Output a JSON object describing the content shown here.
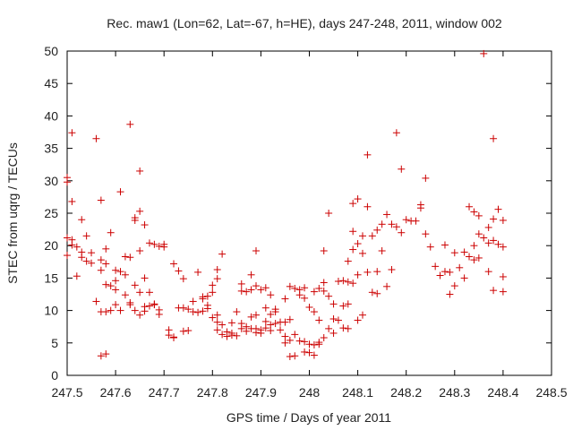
{
  "chart_data": {
    "type": "scatter",
    "title": "Rec. maw1 (Lon=62, Lat=-67, h=HE), days 247-248, 2011, window 002",
    "xlabel": "GPS time / Days of year 2011",
    "ylabel": "STEC from uqrg / TECUs",
    "xlim": [
      247.5,
      248.5
    ],
    "ylim": [
      0,
      50
    ],
    "xticks": [
      "247.5",
      "247.6",
      "247.7",
      "247.8",
      "247.9",
      "248",
      "248.1",
      "248.2",
      "248.3",
      "248.4",
      "248.5"
    ],
    "yticks": [
      "0",
      "5",
      "10",
      "15",
      "20",
      "25",
      "30",
      "35",
      "40",
      "45",
      "50"
    ],
    "grid": false,
    "marker_color": "#cc0000",
    "marker": "plus",
    "points": [
      [
        247.5,
        30.5
      ],
      [
        247.5,
        29.8
      ],
      [
        247.5,
        21.2
      ],
      [
        247.5,
        18.5
      ],
      [
        247.51,
        37.4
      ],
      [
        247.51,
        26.8
      ],
      [
        247.51,
        20.9
      ],
      [
        247.51,
        20.1
      ],
      [
        247.52,
        19.8
      ],
      [
        247.52,
        15.3
      ],
      [
        247.53,
        24.0
      ],
      [
        247.53,
        19.0
      ],
      [
        247.53,
        18.2
      ],
      [
        247.54,
        21.5
      ],
      [
        247.54,
        17.6
      ],
      [
        247.55,
        17.3
      ],
      [
        247.55,
        18.9
      ],
      [
        247.56,
        36.5
      ],
      [
        247.56,
        11.4
      ],
      [
        247.57,
        17.8
      ],
      [
        247.57,
        16.2
      ],
      [
        247.57,
        9.8
      ],
      [
        247.57,
        3.0
      ],
      [
        247.57,
        27.0
      ],
      [
        247.58,
        19.5
      ],
      [
        247.58,
        17.2
      ],
      [
        247.58,
        14.0
      ],
      [
        247.58,
        9.8
      ],
      [
        247.58,
        3.3
      ],
      [
        247.59,
        13.8
      ],
      [
        247.59,
        10.0
      ],
      [
        247.59,
        22.0
      ],
      [
        247.6,
        16.2
      ],
      [
        247.6,
        14.6
      ],
      [
        247.6,
        13.2
      ],
      [
        247.6,
        10.9
      ],
      [
        247.61,
        28.3
      ],
      [
        247.61,
        16.0
      ],
      [
        247.61,
        10.0
      ],
      [
        247.62,
        18.3
      ],
      [
        247.62,
        15.5
      ],
      [
        247.62,
        12.4
      ],
      [
        247.63,
        38.7
      ],
      [
        247.63,
        11.2
      ],
      [
        247.63,
        10.9
      ],
      [
        247.63,
        18.2
      ],
      [
        247.64,
        24.3
      ],
      [
        247.64,
        23.9
      ],
      [
        247.64,
        13.9
      ],
      [
        247.64,
        10.0
      ],
      [
        247.65,
        31.5
      ],
      [
        247.65,
        25.3
      ],
      [
        247.65,
        19.2
      ],
      [
        247.65,
        12.8
      ],
      [
        247.65,
        9.3
      ],
      [
        247.66,
        23.2
      ],
      [
        247.66,
        15.0
      ],
      [
        247.66,
        10.6
      ],
      [
        247.66,
        9.9
      ],
      [
        247.67,
        20.4
      ],
      [
        247.67,
        12.8
      ],
      [
        247.67,
        10.7
      ],
      [
        247.68,
        20.2
      ],
      [
        247.68,
        11.0
      ],
      [
        247.68,
        10.9
      ],
      [
        247.69,
        19.9
      ],
      [
        247.69,
        10.1
      ],
      [
        247.69,
        9.4
      ],
      [
        247.7,
        20.2
      ],
      [
        247.7,
        19.8
      ],
      [
        247.71,
        7.0
      ],
      [
        247.71,
        6.2
      ],
      [
        247.72,
        17.2
      ],
      [
        247.72,
        5.8
      ],
      [
        247.72,
        5.9
      ],
      [
        247.73,
        16.1
      ],
      [
        247.73,
        10.4
      ],
      [
        247.74,
        10.4
      ],
      [
        247.74,
        14.9
      ],
      [
        247.74,
        6.8
      ],
      [
        247.75,
        10.2
      ],
      [
        247.75,
        6.9
      ],
      [
        247.76,
        9.8
      ],
      [
        247.76,
        11.4
      ],
      [
        247.77,
        9.7
      ],
      [
        247.77,
        15.9
      ],
      [
        247.78,
        11.8
      ],
      [
        247.78,
        12.1
      ],
      [
        247.78,
        9.9
      ],
      [
        247.79,
        10.3
      ],
      [
        247.79,
        12.2
      ],
      [
        247.79,
        10.8
      ],
      [
        247.8,
        12.8
      ],
      [
        247.8,
        13.9
      ],
      [
        247.8,
        8.9
      ],
      [
        247.81,
        9.3
      ],
      [
        247.81,
        16.3
      ],
      [
        247.81,
        14.9
      ],
      [
        247.81,
        8.2
      ],
      [
        247.81,
        7.0
      ],
      [
        247.82,
        6.3
      ],
      [
        247.82,
        7.8
      ],
      [
        247.82,
        18.7
      ],
      [
        247.83,
        6.7
      ],
      [
        247.83,
        6.0
      ],
      [
        247.84,
        6.5
      ],
      [
        247.84,
        6.2
      ],
      [
        247.84,
        8.1
      ],
      [
        247.85,
        6.1
      ],
      [
        247.85,
        9.8
      ],
      [
        247.86,
        14.1
      ],
      [
        247.86,
        13.0
      ],
      [
        247.86,
        8.0
      ],
      [
        247.86,
        7.2
      ],
      [
        247.87,
        12.9
      ],
      [
        247.87,
        7.5
      ],
      [
        247.87,
        6.8
      ],
      [
        247.88,
        15.5
      ],
      [
        247.88,
        13.2
      ],
      [
        247.88,
        9.0
      ],
      [
        247.88,
        7.2
      ],
      [
        247.89,
        19.2
      ],
      [
        247.89,
        13.8
      ],
      [
        247.89,
        9.3
      ],
      [
        247.89,
        7.2
      ],
      [
        247.89,
        6.6
      ],
      [
        247.9,
        13.2
      ],
      [
        247.9,
        7.0
      ],
      [
        247.9,
        6.5
      ],
      [
        247.91,
        13.5
      ],
      [
        247.91,
        10.4
      ],
      [
        247.91,
        8.3
      ],
      [
        247.91,
        7.3
      ],
      [
        247.92,
        12.4
      ],
      [
        247.92,
        9.4
      ],
      [
        247.92,
        7.8
      ],
      [
        247.92,
        6.9
      ],
      [
        247.93,
        10.2
      ],
      [
        247.93,
        9.8
      ],
      [
        247.93,
        8.0
      ],
      [
        247.94,
        8.2
      ],
      [
        247.94,
        7.0
      ],
      [
        247.95,
        11.8
      ],
      [
        247.95,
        8.2
      ],
      [
        247.95,
        6.0
      ],
      [
        247.95,
        5.0
      ],
      [
        247.96,
        13.7
      ],
      [
        247.96,
        8.6
      ],
      [
        247.96,
        5.4
      ],
      [
        247.96,
        2.9
      ],
      [
        247.97,
        13.4
      ],
      [
        247.97,
        6.3
      ],
      [
        247.97,
        3.0
      ],
      [
        247.98,
        13.2
      ],
      [
        247.98,
        12.4
      ],
      [
        247.98,
        5.3
      ],
      [
        247.99,
        13.5
      ],
      [
        247.99,
        11.9
      ],
      [
        247.99,
        5.2
      ],
      [
        247.99,
        3.6
      ],
      [
        248.0,
        10.5
      ],
      [
        248.0,
        4.8
      ],
      [
        248.0,
        3.5
      ],
      [
        248.01,
        12.9
      ],
      [
        248.01,
        9.8
      ],
      [
        248.01,
        4.7
      ],
      [
        248.01,
        3.1
      ],
      [
        248.02,
        13.4
      ],
      [
        248.02,
        8.5
      ],
      [
        248.02,
        5.1
      ],
      [
        248.02,
        4.8
      ],
      [
        248.03,
        19.2
      ],
      [
        248.03,
        14.3
      ],
      [
        248.03,
        13.0
      ],
      [
        248.03,
        5.8
      ],
      [
        248.04,
        25.0
      ],
      [
        248.04,
        12.2
      ],
      [
        248.04,
        7.2
      ],
      [
        248.05,
        11.0
      ],
      [
        248.05,
        8.7
      ],
      [
        248.05,
        6.5
      ],
      [
        248.06,
        14.5
      ],
      [
        248.06,
        8.5
      ],
      [
        248.07,
        14.6
      ],
      [
        248.07,
        10.7
      ],
      [
        248.07,
        7.3
      ],
      [
        248.08,
        17.6
      ],
      [
        248.08,
        14.4
      ],
      [
        248.08,
        11.0
      ],
      [
        248.08,
        7.2
      ],
      [
        248.09,
        26.5
      ],
      [
        248.09,
        22.2
      ],
      [
        248.09,
        19.4
      ],
      [
        248.09,
        14.2
      ],
      [
        248.1,
        27.2
      ],
      [
        248.1,
        20.3
      ],
      [
        248.1,
        15.5
      ],
      [
        248.1,
        8.5
      ],
      [
        248.11,
        21.5
      ],
      [
        248.11,
        18.8
      ],
      [
        248.11,
        9.3
      ],
      [
        248.12,
        26.0
      ],
      [
        248.12,
        34.0
      ],
      [
        248.12,
        15.9
      ],
      [
        248.13,
        21.5
      ],
      [
        248.13,
        12.8
      ],
      [
        248.14,
        22.4
      ],
      [
        248.14,
        16.0
      ],
      [
        248.14,
        12.6
      ],
      [
        248.15,
        23.3
      ],
      [
        248.15,
        19.2
      ],
      [
        248.16,
        24.8
      ],
      [
        248.16,
        13.7
      ],
      [
        248.17,
        23.3
      ],
      [
        248.17,
        16.3
      ],
      [
        248.18,
        37.4
      ],
      [
        248.18,
        22.9
      ],
      [
        248.19,
        31.8
      ],
      [
        248.19,
        22.0
      ],
      [
        248.2,
        24.0
      ],
      [
        248.21,
        23.8
      ],
      [
        248.22,
        23.8
      ],
      [
        248.23,
        26.3
      ],
      [
        248.23,
        25.8
      ],
      [
        248.24,
        21.8
      ],
      [
        248.24,
        30.4
      ],
      [
        248.25,
        19.8
      ],
      [
        248.26,
        16.8
      ],
      [
        248.27,
        15.4
      ],
      [
        248.28,
        20.1
      ],
      [
        248.28,
        16.0
      ],
      [
        248.29,
        15.9
      ],
      [
        248.29,
        12.5
      ],
      [
        248.3,
        13.8
      ],
      [
        248.3,
        18.9
      ],
      [
        248.31,
        16.6
      ],
      [
        248.32,
        15.0
      ],
      [
        248.32,
        19.0
      ],
      [
        248.33,
        26.0
      ],
      [
        248.33,
        18.3
      ],
      [
        248.34,
        25.2
      ],
      [
        248.34,
        20.0
      ],
      [
        248.34,
        17.8
      ],
      [
        248.35,
        24.6
      ],
      [
        248.35,
        21.8
      ],
      [
        248.35,
        18.1
      ],
      [
        248.36,
        49.6
      ],
      [
        248.36,
        21.2
      ],
      [
        248.37,
        22.8
      ],
      [
        248.37,
        20.4
      ],
      [
        248.37,
        16.0
      ],
      [
        248.38,
        36.5
      ],
      [
        248.38,
        24.1
      ],
      [
        248.38,
        20.8
      ],
      [
        248.38,
        13.1
      ],
      [
        248.39,
        25.6
      ],
      [
        248.39,
        20.2
      ],
      [
        248.4,
        23.9
      ],
      [
        248.4,
        19.8
      ],
      [
        248.4,
        15.2
      ],
      [
        248.4,
        12.9
      ]
    ]
  }
}
